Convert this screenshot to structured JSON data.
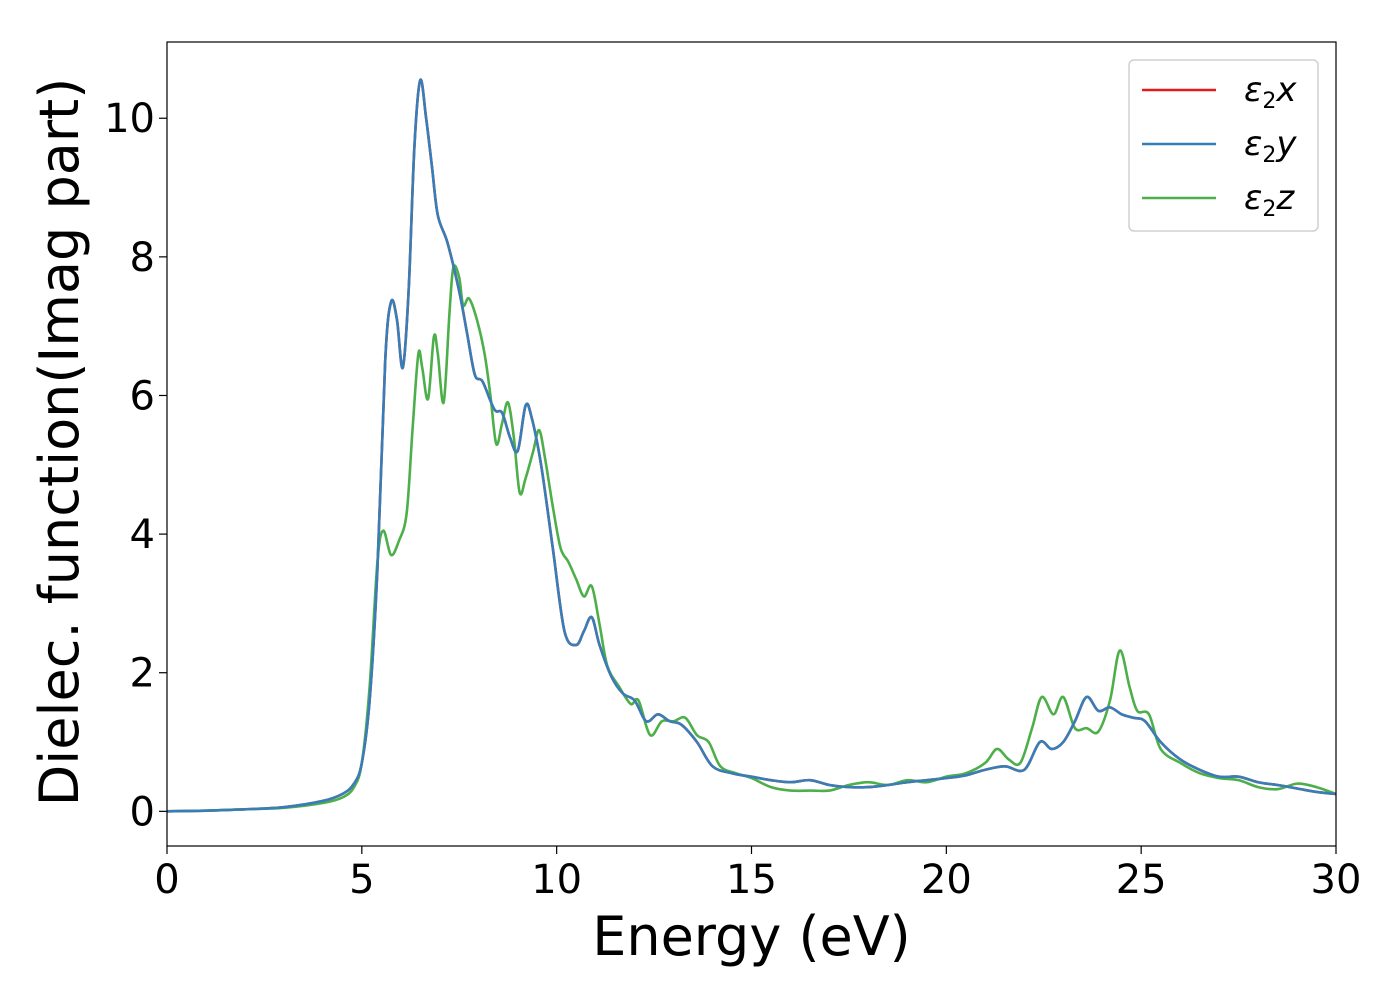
{
  "chart_data": {
    "type": "line",
    "title": "",
    "xlabel": "Energy (eV)",
    "ylabel": "Dielec. function(Imag part)",
    "xlim": [
      0,
      30
    ],
    "ylim": [
      -0.5,
      11.1
    ],
    "xticks": [
      0,
      5,
      10,
      15,
      20,
      25,
      30
    ],
    "yticks": [
      0,
      2,
      4,
      6,
      8,
      10
    ],
    "grid": false,
    "legend_position": "top-right",
    "series": [
      {
        "name": "ε2x",
        "color": "#e41a1c",
        "points": [
          [
            0,
            0.0
          ],
          [
            1,
            0.01
          ],
          [
            2,
            0.03
          ],
          [
            3,
            0.06
          ],
          [
            4,
            0.15
          ],
          [
            4.5,
            0.25
          ],
          [
            4.8,
            0.4
          ],
          [
            5.0,
            0.7
          ],
          [
            5.2,
            1.6
          ],
          [
            5.4,
            3.5
          ],
          [
            5.6,
            6.5
          ],
          [
            5.75,
            7.35
          ],
          [
            5.9,
            7.1
          ],
          [
            6.05,
            6.4
          ],
          [
            6.2,
            7.5
          ],
          [
            6.35,
            9.6
          ],
          [
            6.5,
            10.55
          ],
          [
            6.65,
            10.0
          ],
          [
            6.8,
            9.3
          ],
          [
            6.95,
            8.6
          ],
          [
            7.2,
            8.2
          ],
          [
            7.5,
            7.5
          ],
          [
            7.7,
            6.9
          ],
          [
            7.9,
            6.3
          ],
          [
            8.1,
            6.2
          ],
          [
            8.4,
            5.8
          ],
          [
            8.6,
            5.75
          ],
          [
            8.8,
            5.4
          ],
          [
            9.0,
            5.2
          ],
          [
            9.2,
            5.85
          ],
          [
            9.35,
            5.7
          ],
          [
            9.6,
            5.0
          ],
          [
            9.9,
            3.8
          ],
          [
            10.2,
            2.6
          ],
          [
            10.5,
            2.4
          ],
          [
            10.7,
            2.6
          ],
          [
            10.9,
            2.8
          ],
          [
            11.1,
            2.4
          ],
          [
            11.4,
            1.95
          ],
          [
            11.7,
            1.7
          ],
          [
            12.0,
            1.6
          ],
          [
            12.3,
            1.3
          ],
          [
            12.6,
            1.4
          ],
          [
            12.9,
            1.3
          ],
          [
            13.2,
            1.25
          ],
          [
            13.6,
            1.0
          ],
          [
            14.0,
            0.65
          ],
          [
            14.5,
            0.55
          ],
          [
            15.0,
            0.5
          ],
          [
            15.5,
            0.45
          ],
          [
            16.0,
            0.42
          ],
          [
            16.5,
            0.45
          ],
          [
            17.0,
            0.38
          ],
          [
            17.5,
            0.35
          ],
          [
            18.0,
            0.35
          ],
          [
            18.5,
            0.38
          ],
          [
            19.0,
            0.42
          ],
          [
            19.5,
            0.45
          ],
          [
            20.0,
            0.48
          ],
          [
            20.5,
            0.52
          ],
          [
            21.0,
            0.6
          ],
          [
            21.5,
            0.65
          ],
          [
            22.0,
            0.6
          ],
          [
            22.4,
            1.0
          ],
          [
            22.7,
            0.9
          ],
          [
            23.0,
            1.0
          ],
          [
            23.3,
            1.3
          ],
          [
            23.6,
            1.65
          ],
          [
            23.9,
            1.45
          ],
          [
            24.2,
            1.5
          ],
          [
            24.5,
            1.4
          ],
          [
            24.8,
            1.35
          ],
          [
            25.1,
            1.3
          ],
          [
            25.5,
            1.0
          ],
          [
            26.0,
            0.75
          ],
          [
            26.5,
            0.6
          ],
          [
            27.0,
            0.5
          ],
          [
            27.5,
            0.5
          ],
          [
            28.0,
            0.42
          ],
          [
            28.5,
            0.38
          ],
          [
            29.0,
            0.33
          ],
          [
            29.5,
            0.28
          ],
          [
            30.0,
            0.25
          ]
        ]
      },
      {
        "name": "ε2y",
        "color": "#377eb8",
        "points": [
          [
            0,
            0.0
          ],
          [
            1,
            0.01
          ],
          [
            2,
            0.03
          ],
          [
            3,
            0.06
          ],
          [
            4,
            0.15
          ],
          [
            4.5,
            0.25
          ],
          [
            4.8,
            0.4
          ],
          [
            5.0,
            0.7
          ],
          [
            5.2,
            1.6
          ],
          [
            5.4,
            3.5
          ],
          [
            5.6,
            6.5
          ],
          [
            5.75,
            7.35
          ],
          [
            5.9,
            7.1
          ],
          [
            6.05,
            6.4
          ],
          [
            6.2,
            7.5
          ],
          [
            6.35,
            9.6
          ],
          [
            6.5,
            10.55
          ],
          [
            6.65,
            10.0
          ],
          [
            6.8,
            9.3
          ],
          [
            6.95,
            8.6
          ],
          [
            7.2,
            8.2
          ],
          [
            7.5,
            7.5
          ],
          [
            7.7,
            6.9
          ],
          [
            7.9,
            6.3
          ],
          [
            8.1,
            6.2
          ],
          [
            8.4,
            5.8
          ],
          [
            8.6,
            5.75
          ],
          [
            8.8,
            5.4
          ],
          [
            9.0,
            5.2
          ],
          [
            9.2,
            5.85
          ],
          [
            9.35,
            5.7
          ],
          [
            9.6,
            5.0
          ],
          [
            9.9,
            3.8
          ],
          [
            10.2,
            2.6
          ],
          [
            10.5,
            2.4
          ],
          [
            10.7,
            2.6
          ],
          [
            10.9,
            2.8
          ],
          [
            11.1,
            2.4
          ],
          [
            11.4,
            1.95
          ],
          [
            11.7,
            1.7
          ],
          [
            12.0,
            1.6
          ],
          [
            12.3,
            1.3
          ],
          [
            12.6,
            1.4
          ],
          [
            12.9,
            1.3
          ],
          [
            13.2,
            1.25
          ],
          [
            13.6,
            1.0
          ],
          [
            14.0,
            0.65
          ],
          [
            14.5,
            0.55
          ],
          [
            15.0,
            0.5
          ],
          [
            15.5,
            0.45
          ],
          [
            16.0,
            0.42
          ],
          [
            16.5,
            0.45
          ],
          [
            17.0,
            0.38
          ],
          [
            17.5,
            0.35
          ],
          [
            18.0,
            0.35
          ],
          [
            18.5,
            0.38
          ],
          [
            19.0,
            0.42
          ],
          [
            19.5,
            0.45
          ],
          [
            20.0,
            0.48
          ],
          [
            20.5,
            0.52
          ],
          [
            21.0,
            0.6
          ],
          [
            21.5,
            0.65
          ],
          [
            22.0,
            0.6
          ],
          [
            22.4,
            1.0
          ],
          [
            22.7,
            0.9
          ],
          [
            23.0,
            1.0
          ],
          [
            23.3,
            1.3
          ],
          [
            23.6,
            1.65
          ],
          [
            23.9,
            1.45
          ],
          [
            24.2,
            1.5
          ],
          [
            24.5,
            1.4
          ],
          [
            24.8,
            1.35
          ],
          [
            25.1,
            1.3
          ],
          [
            25.5,
            1.0
          ],
          [
            26.0,
            0.75
          ],
          [
            26.5,
            0.6
          ],
          [
            27.0,
            0.5
          ],
          [
            27.5,
            0.5
          ],
          [
            28.0,
            0.42
          ],
          [
            28.5,
            0.38
          ],
          [
            29.0,
            0.33
          ],
          [
            29.5,
            0.28
          ],
          [
            30.0,
            0.25
          ]
        ]
      },
      {
        "name": "ε2z",
        "color": "#4daf4a",
        "points": [
          [
            0,
            0.0
          ],
          [
            1,
            0.01
          ],
          [
            2,
            0.03
          ],
          [
            3,
            0.05
          ],
          [
            4,
            0.12
          ],
          [
            4.5,
            0.2
          ],
          [
            4.8,
            0.35
          ],
          [
            5.0,
            0.7
          ],
          [
            5.2,
            1.8
          ],
          [
            5.4,
            3.6
          ],
          [
            5.55,
            4.05
          ],
          [
            5.75,
            3.7
          ],
          [
            5.95,
            3.9
          ],
          [
            6.15,
            4.3
          ],
          [
            6.3,
            5.5
          ],
          [
            6.45,
            6.6
          ],
          [
            6.55,
            6.4
          ],
          [
            6.7,
            5.95
          ],
          [
            6.85,
            6.85
          ],
          [
            6.95,
            6.6
          ],
          [
            7.1,
            5.9
          ],
          [
            7.25,
            7.2
          ],
          [
            7.35,
            7.85
          ],
          [
            7.5,
            7.7
          ],
          [
            7.6,
            7.3
          ],
          [
            7.75,
            7.4
          ],
          [
            7.95,
            7.1
          ],
          [
            8.15,
            6.6
          ],
          [
            8.3,
            6.0
          ],
          [
            8.45,
            5.3
          ],
          [
            8.6,
            5.6
          ],
          [
            8.75,
            5.9
          ],
          [
            8.9,
            5.4
          ],
          [
            9.05,
            4.6
          ],
          [
            9.2,
            4.8
          ],
          [
            9.4,
            5.2
          ],
          [
            9.55,
            5.5
          ],
          [
            9.7,
            5.1
          ],
          [
            9.9,
            4.4
          ],
          [
            10.1,
            3.8
          ],
          [
            10.3,
            3.6
          ],
          [
            10.5,
            3.35
          ],
          [
            10.7,
            3.1
          ],
          [
            10.9,
            3.25
          ],
          [
            11.1,
            2.7
          ],
          [
            11.3,
            2.1
          ],
          [
            11.6,
            1.8
          ],
          [
            11.9,
            1.55
          ],
          [
            12.1,
            1.6
          ],
          [
            12.4,
            1.1
          ],
          [
            12.7,
            1.3
          ],
          [
            13.0,
            1.3
          ],
          [
            13.3,
            1.35
          ],
          [
            13.6,
            1.1
          ],
          [
            13.9,
            1.0
          ],
          [
            14.2,
            0.65
          ],
          [
            14.6,
            0.55
          ],
          [
            15.0,
            0.48
          ],
          [
            15.5,
            0.35
          ],
          [
            16.0,
            0.3
          ],
          [
            16.5,
            0.3
          ],
          [
            17.0,
            0.3
          ],
          [
            17.5,
            0.38
          ],
          [
            18.0,
            0.42
          ],
          [
            18.5,
            0.38
          ],
          [
            19.0,
            0.45
          ],
          [
            19.5,
            0.42
          ],
          [
            20.0,
            0.5
          ],
          [
            20.5,
            0.55
          ],
          [
            21.0,
            0.7
          ],
          [
            21.3,
            0.9
          ],
          [
            21.6,
            0.75
          ],
          [
            21.9,
            0.7
          ],
          [
            22.2,
            1.2
          ],
          [
            22.45,
            1.65
          ],
          [
            22.75,
            1.4
          ],
          [
            23.0,
            1.65
          ],
          [
            23.3,
            1.2
          ],
          [
            23.6,
            1.2
          ],
          [
            23.9,
            1.15
          ],
          [
            24.2,
            1.6
          ],
          [
            24.45,
            2.32
          ],
          [
            24.7,
            1.8
          ],
          [
            24.9,
            1.45
          ],
          [
            25.2,
            1.4
          ],
          [
            25.5,
            0.9
          ],
          [
            26.0,
            0.7
          ],
          [
            26.5,
            0.55
          ],
          [
            27.0,
            0.48
          ],
          [
            27.5,
            0.45
          ],
          [
            28.0,
            0.35
          ],
          [
            28.5,
            0.32
          ],
          [
            29.0,
            0.4
          ],
          [
            29.5,
            0.35
          ],
          [
            30.0,
            0.25
          ]
        ]
      }
    ]
  }
}
